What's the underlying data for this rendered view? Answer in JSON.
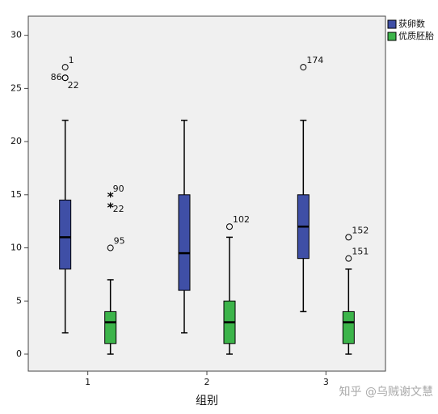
{
  "chart_data": {
    "type": "box",
    "xlabel": "组别",
    "categories": [
      "1",
      "2",
      "3"
    ],
    "ylim": [
      -1.6,
      31.8
    ],
    "yticks": [
      0,
      5,
      10,
      15,
      20,
      25,
      30
    ],
    "legend": "top-right",
    "series": [
      {
        "name": "获卵数",
        "color": "#3f4fa6",
        "boxes": [
          {
            "whislo": 2,
            "q1": 8,
            "med": 11,
            "q3": 14.5,
            "whishi": 22,
            "outliers": [
              27,
              26,
              26
            ],
            "outlier_labels": [
              "1",
              "86",
              "22"
            ],
            "extremes": [],
            "extreme_labels": []
          },
          {
            "whislo": 2,
            "q1": 6,
            "med": 9.5,
            "q3": 15,
            "whishi": 22,
            "outliers": [],
            "outlier_labels": [],
            "extremes": [],
            "extreme_labels": []
          },
          {
            "whislo": 4,
            "q1": 9,
            "med": 12,
            "q3": 15,
            "whishi": 22,
            "outliers": [
              27
            ],
            "outlier_labels": [
              "174"
            ],
            "extremes": [],
            "extreme_labels": []
          }
        ]
      },
      {
        "name": "优质胚胎",
        "color": "#3cb44a",
        "boxes": [
          {
            "whislo": 0,
            "q1": 1,
            "med": 3,
            "q3": 4,
            "whishi": 7,
            "outliers": [
              10
            ],
            "outlier_labels": [
              "95"
            ],
            "extremes": [
              15,
              14
            ],
            "extreme_labels": [
              "90",
              "22"
            ]
          },
          {
            "whislo": 0,
            "q1": 1,
            "med": 3,
            "q3": 5,
            "whishi": 11,
            "outliers": [
              12
            ],
            "outlier_labels": [
              "102"
            ],
            "extremes": [],
            "extreme_labels": []
          },
          {
            "whislo": 0,
            "q1": 1,
            "med": 3,
            "q3": 4,
            "whishi": 8,
            "outliers": [
              11,
              9
            ],
            "outlier_labels": [
              "152",
              "151"
            ],
            "extremes": [],
            "extreme_labels": []
          }
        ]
      }
    ]
  },
  "watermark": "知乎 @乌贼谢文慧"
}
